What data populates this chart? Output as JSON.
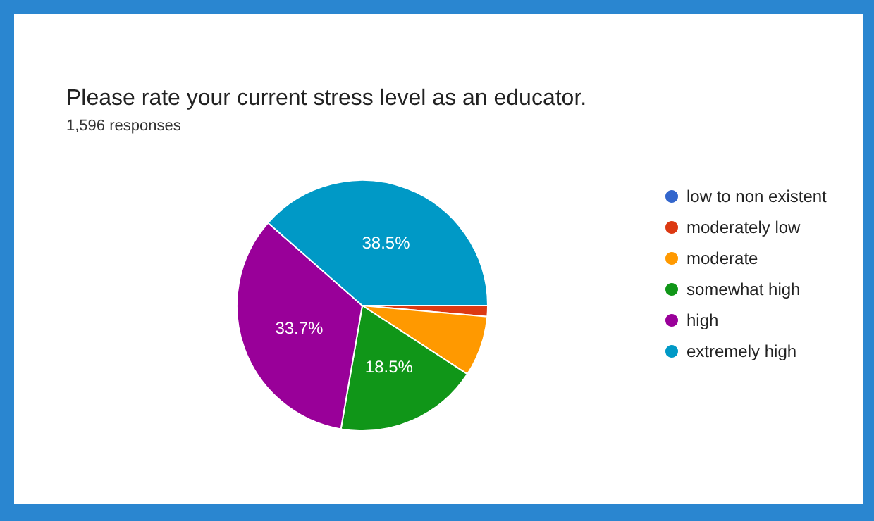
{
  "chart_data": {
    "type": "pie",
    "title": "Please rate your current stress level as an educator.",
    "subtitle": "1,596 responses",
    "categories": [
      "low to non existent",
      "moderately low",
      "moderate",
      "somewhat high",
      "high",
      "extremely high"
    ],
    "values": [
      null,
      1.4,
      7.8,
      18.5,
      33.7,
      38.5
    ],
    "colors": [
      "#3366cc",
      "#dc3912",
      "#ff9900",
      "#109618",
      "#990099",
      "#0099c6"
    ],
    "value_labels": [
      null,
      null,
      null,
      "18.5%",
      "33.7%",
      "38.5%"
    ],
    "legend": "right"
  }
}
